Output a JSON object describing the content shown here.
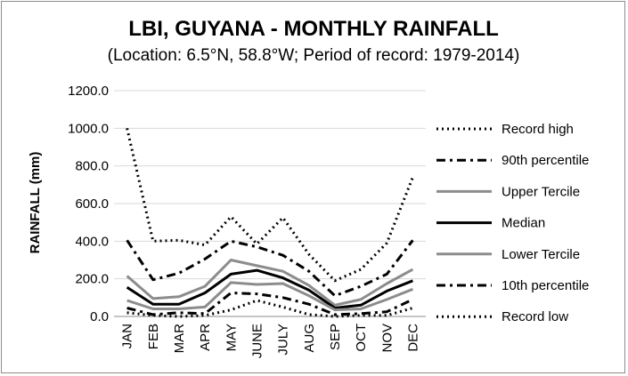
{
  "chart_data": {
    "type": "line",
    "title": "LBI, GUYANA - MONTHLY RAINFALL",
    "subtitle": "(Location: 6.5°N, 58.8°W; Period of record: 1979-2014)",
    "ylabel": "RAINFALL (mm)",
    "ylim": [
      0,
      1200
    ],
    "yticks": [
      "0.0",
      "200.0",
      "400.0",
      "600.0",
      "800.0",
      "1000.0",
      "1200.0"
    ],
    "grid": true,
    "legend_position": "right",
    "categories": [
      "JAN",
      "FEB",
      "MAR",
      "APR",
      "MAY",
      "JUNE",
      "JULY",
      "AUG",
      "SEP",
      "OCT",
      "NOV",
      "DEC"
    ],
    "series": [
      {
        "name": "Record high",
        "color": "#000000",
        "style": "dotted",
        "values": [
          1000,
          400,
          405,
          380,
          530,
          385,
          525,
          330,
          190,
          250,
          390,
          740
        ]
      },
      {
        "name": "90th percentile",
        "color": "#000000",
        "style": "dashdot",
        "values": [
          405,
          195,
          230,
          305,
          400,
          370,
          325,
          240,
          110,
          160,
          225,
          405
        ]
      },
      {
        "name": "Upper Tercile",
        "color": "#8c8c8c",
        "style": "solid",
        "values": [
          215,
          95,
          105,
          160,
          300,
          270,
          240,
          165,
          60,
          90,
          175,
          250
        ]
      },
      {
        "name": "Median",
        "color": "#000000",
        "style": "solid",
        "values": [
          155,
          65,
          65,
          125,
          225,
          245,
          205,
          140,
          45,
          60,
          135,
          190
        ]
      },
      {
        "name": "Lower Tercile",
        "color": "#8c8c8c",
        "style": "solid",
        "values": [
          85,
          40,
          40,
          50,
          180,
          170,
          175,
          110,
          35,
          40,
          90,
          145
        ]
      },
      {
        "name": "10th percentile",
        "color": "#000000",
        "style": "dashdot",
        "values": [
          45,
          10,
          20,
          15,
          125,
          120,
          100,
          65,
          10,
          15,
          25,
          90
        ]
      },
      {
        "name": "Record low",
        "color": "#000000",
        "style": "dotted",
        "values": [
          20,
          5,
          0,
          5,
          35,
          85,
          50,
          10,
          0,
          5,
          5,
          45
        ]
      }
    ]
  }
}
